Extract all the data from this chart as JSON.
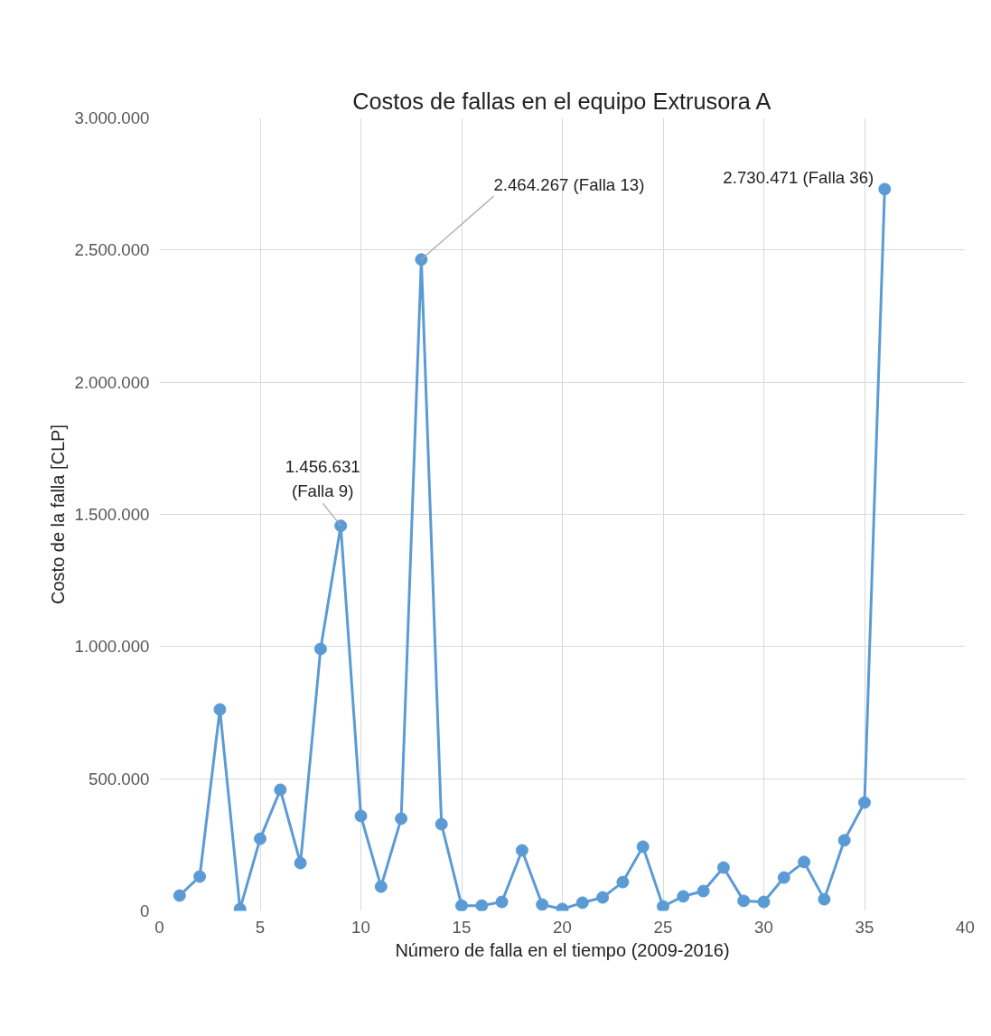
{
  "chart_data": {
    "type": "line",
    "title": "Costos de fallas en el equipo Extrusora A",
    "xlabel": "Número de falla en el tiempo (2009-2016)",
    "ylabel": "Costo de la falla [CLP]",
    "x": [
      1,
      2,
      3,
      4,
      5,
      6,
      7,
      8,
      9,
      10,
      11,
      12,
      13,
      14,
      15,
      16,
      17,
      18,
      19,
      20,
      21,
      22,
      23,
      24,
      25,
      26,
      27,
      28,
      29,
      30,
      31,
      32,
      33,
      34,
      35,
      36
    ],
    "series": [
      {
        "color": "#5b9bd5",
        "values": [
          58000,
          130000,
          762000,
          7000,
          273000,
          458000,
          181000,
          991000,
          1456631,
          359000,
          92000,
          349000,
          2464267,
          328000,
          20000,
          20000,
          34000,
          229000,
          24000,
          7000,
          31000,
          51000,
          109000,
          243000,
          17000,
          55000,
          75000,
          164000,
          38000,
          34000,
          126000,
          185000,
          44000,
          267000,
          410000,
          2730471
        ]
      }
    ],
    "xlim": [
      0,
      40
    ],
    "xticks": [
      0,
      5,
      10,
      15,
      20,
      25,
      30,
      35,
      40
    ],
    "ylim": [
      0,
      3000000
    ],
    "yticks": [
      {
        "value": 0,
        "label": "0"
      },
      {
        "value": 500000,
        "label": "500.000"
      },
      {
        "value": 1000000,
        "label": "1.000.000"
      },
      {
        "value": 1500000,
        "label": "1.500.000"
      },
      {
        "value": 2000000,
        "label": "2.000.000"
      },
      {
        "value": 2500000,
        "label": "2.500.000"
      },
      {
        "value": 3000000,
        "label": "3.000.000"
      }
    ],
    "grid": true,
    "marker": "circle",
    "line_style": "solid",
    "annotations": [
      {
        "text": "1.456.631 (Falla 9)",
        "x": 9,
        "y": 1456631
      },
      {
        "text": "2.464.267 (Falla 13)",
        "x": 13,
        "y": 2464267
      },
      {
        "text": "2.730.471 (Falla 36)",
        "x": 36,
        "y": 2730471
      }
    ]
  }
}
